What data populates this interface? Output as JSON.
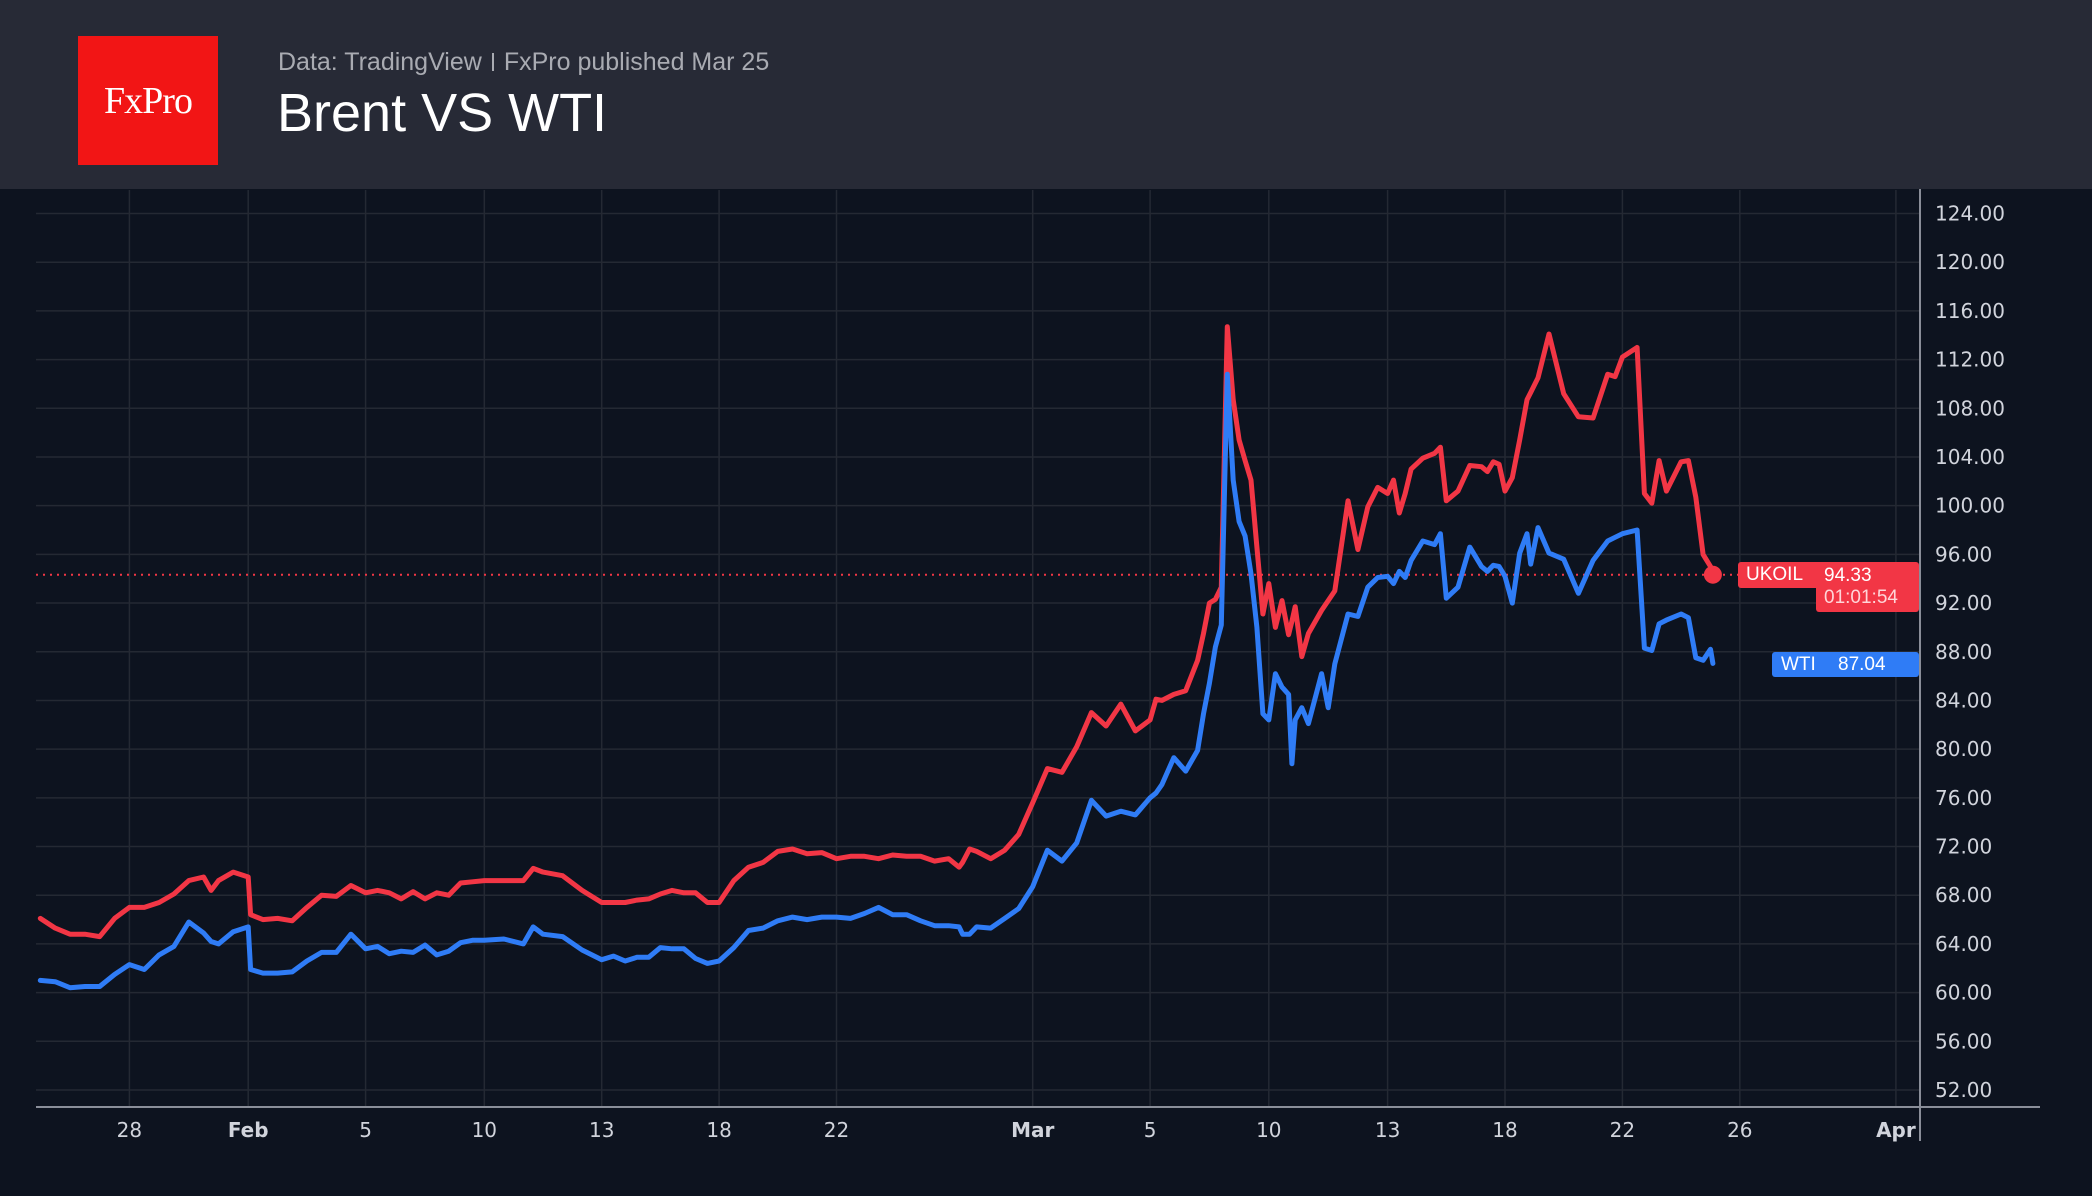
{
  "header": {
    "logo_text": "FxPro",
    "source": "Data: TradingView",
    "published": "FxPro published Mar 25",
    "title": "Brent VS WTI"
  },
  "colors": {
    "background": "#0d131f",
    "header": "#272a36",
    "logo": "#f21515",
    "brent": "#f23645",
    "wti": "#2f7cf6",
    "grid": "#242933",
    "axis_text": "#d1d4dc"
  },
  "price_tags": {
    "brent": {
      "symbol": "UKOIL",
      "price": "94.33",
      "countdown": "01:01:54"
    },
    "wti": {
      "symbol": "WTI",
      "price": "87.04"
    }
  },
  "chart_data": {
    "type": "line",
    "title": "",
    "xlabel": "",
    "ylabel": "",
    "ylim": [
      52,
      124
    ],
    "grid": true,
    "y_ticks": [
      "124.00",
      "120.00",
      "116.00",
      "112.00",
      "108.00",
      "104.00",
      "100.00",
      "96.00",
      "92.00",
      "88.00",
      "84.00",
      "80.00",
      "76.00",
      "72.00",
      "68.00",
      "64.00",
      "60.00",
      "56.00",
      "52.00"
    ],
    "x_ticks": [
      {
        "label": "28",
        "date": "Jan 28"
      },
      {
        "label": "Feb",
        "date": "Feb 1"
      },
      {
        "label": "5",
        "date": "Feb 5"
      },
      {
        "label": "10",
        "date": "Feb 10"
      },
      {
        "label": "13",
        "date": "Feb 13"
      },
      {
        "label": "18",
        "date": "Feb 18"
      },
      {
        "label": "22",
        "date": "Feb 22"
      },
      {
        "label": "Mar",
        "date": "Mar 1"
      },
      {
        "label": "5",
        "date": "Mar 5"
      },
      {
        "label": "10",
        "date": "Mar 10"
      },
      {
        "label": "13",
        "date": "Mar 13"
      },
      {
        "label": "18",
        "date": "Mar 18"
      },
      {
        "label": "22",
        "date": "Mar 22"
      },
      {
        "label": "26",
        "date": "Mar 26"
      },
      {
        "label": "Apr",
        "date": "Apr 1"
      }
    ],
    "x": [
      "Jan 25 00:00",
      "Jan 25 12:00",
      "Jan 26 00:00",
      "Jan 26 12:00",
      "Jan 27 00:00",
      "Jan 27 12:00",
      "Jan 28 00:00",
      "Jan 28 12:00",
      "Jan 29 00:00",
      "Jan 29 12:00",
      "Jan 30 00:00",
      "Jan 30 12:00",
      "Jan 30 18:00",
      "Jan 31 00:00",
      "Jan 31 12:00",
      "Feb 1 00:00",
      "Feb 1 02:00",
      "Feb 1 12:00",
      "Feb 2 00:00",
      "Feb 2 12:00",
      "Feb 3 00:00",
      "Feb 3 12:00",
      "Feb 4 00:00",
      "Feb 4 12:00",
      "Feb 5 00:00",
      "Feb 5 12:00",
      "Feb 6 00:00",
      "Feb 6 12:00",
      "Feb 7 00:00",
      "Feb 7 12:00",
      "Feb 8 00:00",
      "Feb 8 12:00",
      "Feb 9 00:00",
      "Feb 9 12:00",
      "Feb 10 00:00",
      "Feb 10 12:00",
      "Feb 11 00:00",
      "Feb 11 06:00",
      "Feb 11 12:00",
      "Feb 12 00:00",
      "Feb 12 12:00",
      "Feb 13 00:00",
      "Feb 13 12:00",
      "Feb 14 00:00",
      "Feb 14 12:00",
      "Feb 15 00:00",
      "Feb 15 12:00",
      "Feb 16 00:00",
      "Feb 16 12:00",
      "Feb 17 00:00",
      "Feb 17 12:00",
      "Feb 18 00:00",
      "Feb 18 12:00",
      "Feb 19 00:00",
      "Feb 19 12:00",
      "Feb 20 00:00",
      "Feb 20 12:00",
      "Feb 21 00:00",
      "Feb 21 12:00",
      "Feb 22 00:00",
      "Feb 22 12:00",
      "Feb 23 00:00",
      "Feb 23 12:00",
      "Feb 24 00:00",
      "Feb 24 12:00",
      "Feb 25 00:00",
      "Feb 25 12:00",
      "Feb 26 00:00",
      "Feb 26 09:00",
      "Feb 26 12:00",
      "Feb 26 18:00",
      "Feb 27 00:00",
      "Feb 27 12:00",
      "Feb 28 00:00",
      "Feb 28 12:00",
      "Mar 1 00:00",
      "Mar 1 12:00",
      "Mar 2 00:00",
      "Mar 2 12:00",
      "Mar 3 00:00",
      "Mar 3 12:00",
      "Mar 4 00:00",
      "Mar 4 12:00",
      "Mar 5 00:00",
      "Mar 5 06:00",
      "Mar 5 12:00",
      "Mar 6 00:00",
      "Mar 6 12:00",
      "Mar 7 00:00",
      "Mar 7 06:00",
      "Mar 7 12:00",
      "Mar 7 18:00",
      "Mar 8 00:00",
      "Mar 8 06:00",
      "Mar 8 12:00",
      "Mar 8 18:00",
      "Mar 9 00:00",
      "Mar 9 06:00",
      "Mar 9 12:00",
      "Mar 9 18:00",
      "Mar 10 00:00",
      "Mar 10 04:00",
      "Mar 10 08:00",
      "Mar 10 12:00",
      "Mar 10 14:00",
      "Mar 10 16:00",
      "Mar 10 20:00",
      "Mar 11 00:00",
      "Mar 11 08:00",
      "Mar 11 12:00",
      "Mar 11 16:00",
      "Mar 12 00:00",
      "Mar 12 06:00",
      "Mar 12 12:00",
      "Mar 12 18:00",
      "Mar 13 00:00",
      "Mar 13 06:00",
      "Mar 13 12:00",
      "Mar 13 18:00",
      "Mar 14 00:00",
      "Mar 14 12:00",
      "Mar 15 00:00",
      "Mar 15 06:00",
      "Mar 15 12:00",
      "Mar 16 00:00",
      "Mar 16 12:00",
      "Mar 17 00:00",
      "Mar 17 06:00",
      "Mar 17 12:00",
      "Mar 17 18:00",
      "Mar 18 00:00",
      "Mar 18 06:00",
      "Mar 18 12:00",
      "Mar 18 18:00",
      "Mar 18 21:00",
      "Mar 19 03:00",
      "Mar 19 12:00",
      "Mar 20 00:00",
      "Mar 20 12:00",
      "Mar 21 00:00",
      "Mar 21 12:00",
      "Mar 21 18:00",
      "Mar 22 00:00",
      "Mar 22 12:00",
      "Mar 22 18:00",
      "Mar 23 00:00",
      "Mar 23 06:00",
      "Mar 23 12:00",
      "Mar 24 00:00",
      "Mar 24 06:00",
      "Mar 24 12:00",
      "Mar 24 18:00",
      "Mar 25 00:00",
      "Mar 25 02:00"
    ],
    "series": [
      {
        "name": "UKOIL",
        "color": "#f23645",
        "values": [
          66.1,
          65.3,
          64.8,
          64.8,
          64.6,
          66.1,
          67.0,
          67.0,
          67.4,
          68.1,
          69.2,
          69.5,
          68.4,
          69.2,
          69.9,
          69.5,
          66.4,
          66.0,
          66.1,
          65.9,
          67.0,
          68.0,
          67.9,
          68.8,
          68.2,
          68.4,
          68.2,
          67.7,
          68.3,
          67.7,
          68.2,
          68.0,
          69.0,
          69.1,
          69.2,
          69.2,
          69.2,
          70.2,
          69.9,
          69.6,
          68.4,
          67.4,
          67.4,
          67.4,
          67.6,
          67.7,
          68.1,
          68.4,
          68.2,
          68.2,
          67.4,
          67.4,
          69.2,
          70.3,
          70.7,
          71.6,
          71.8,
          71.4,
          71.5,
          71.0,
          71.2,
          71.2,
          71.0,
          71.3,
          71.2,
          71.2,
          70.8,
          71.0,
          70.3,
          70.7,
          71.8,
          71.6,
          71.0,
          71.7,
          73.0,
          75.6,
          78.4,
          78.1,
          80.2,
          83.0,
          81.9,
          83.7,
          81.5,
          82.4,
          84.1,
          84.0,
          84.5,
          84.8,
          87.3,
          89.5,
          92.0,
          92.3,
          93.3,
          114.7,
          108.7,
          105.4,
          103.7,
          102.1,
          96.6,
          91.1,
          93.6,
          90.0,
          92.2,
          89.4,
          90.5,
          91.7,
          87.6,
          89.5,
          91.4,
          92.2,
          93.0,
          100.4,
          96.4,
          99.9,
          101.5,
          101.0,
          102.1,
          99.4,
          101.0,
          103.0,
          103.9,
          104.3,
          104.8,
          100.4,
          101.2,
          103.3,
          103.2,
          102.8,
          103.6,
          103.4,
          101.2,
          102.3,
          105.4,
          108.7,
          109.3,
          110.5,
          114.1,
          109.2,
          107.3,
          107.2,
          110.8,
          110.6,
          112.2,
          113.0,
          101.0,
          100.2,
          103.7,
          101.2,
          103.6,
          103.7,
          100.7,
          96.0,
          95.0,
          94.33
        ]
      },
      {
        "name": "WTI",
        "color": "#2f7cf6",
        "values": [
          61.0,
          60.9,
          60.4,
          60.5,
          60.5,
          61.5,
          62.3,
          61.9,
          63.1,
          63.8,
          65.8,
          64.9,
          64.2,
          64.0,
          65.0,
          65.4,
          61.9,
          61.6,
          61.6,
          61.7,
          62.6,
          63.3,
          63.3,
          64.8,
          63.6,
          63.8,
          63.2,
          63.4,
          63.3,
          63.9,
          63.1,
          63.4,
          64.1,
          64.3,
          64.3,
          64.4,
          64.0,
          65.4,
          64.8,
          64.6,
          63.5,
          62.7,
          63.0,
          62.6,
          62.9,
          62.9,
          63.7,
          63.6,
          63.6,
          62.8,
          62.4,
          62.6,
          63.7,
          65.1,
          65.3,
          65.9,
          66.2,
          66.0,
          66.2,
          66.2,
          66.1,
          66.5,
          67.0,
          66.4,
          66.4,
          65.9,
          65.5,
          65.5,
          65.4,
          64.8,
          64.8,
          65.4,
          65.3,
          66.1,
          66.9,
          68.7,
          71.7,
          70.8,
          72.3,
          75.8,
          74.5,
          74.9,
          74.6,
          76.0,
          76.4,
          77.1,
          79.3,
          78.2,
          79.9,
          82.9,
          85.4,
          88.4,
          90.2,
          110.8,
          102.1,
          98.7,
          97.5,
          94.4,
          90.0,
          82.9,
          82.4,
          86.2,
          85.1,
          84.5,
          78.8,
          82.4,
          83.4,
          82.1,
          86.2,
          83.4,
          87.0,
          91.1,
          90.9,
          93.3,
          94.1,
          94.2,
          93.6,
          94.6,
          94.1,
          95.5,
          97.1,
          96.8,
          97.7,
          92.4,
          93.3,
          96.6,
          95.0,
          94.6,
          95.1,
          95.0,
          94.2,
          92.0,
          96.1,
          97.7,
          95.2,
          98.2,
          96.1,
          95.6,
          92.8,
          95.5,
          97.1,
          97.4,
          97.7,
          98.0,
          88.3,
          88.1,
          90.3,
          90.6,
          91.1,
          90.8,
          87.5,
          87.3,
          88.2,
          87.04
        ]
      }
    ]
  }
}
